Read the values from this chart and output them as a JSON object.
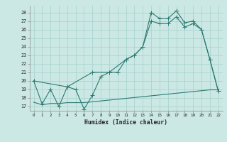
{
  "xlabel": "Humidex (Indice chaleur)",
  "bg_color": "#cce8e4",
  "grid_color": "#aad4d0",
  "line_color": "#2d7a72",
  "line1_x": [
    0,
    1,
    2,
    3,
    4,
    5,
    6,
    7,
    8,
    9,
    10,
    11,
    12,
    13,
    14,
    15,
    16,
    17,
    18,
    19,
    20,
    21,
    22
  ],
  "line1_y": [
    20.0,
    17.3,
    19.0,
    17.0,
    19.3,
    19.0,
    16.7,
    18.3,
    20.5,
    21.0,
    21.0,
    22.5,
    23.0,
    24.0,
    28.0,
    27.3,
    27.3,
    28.2,
    26.8,
    27.0,
    26.0,
    22.5,
    18.8
  ],
  "line2_x": [
    0,
    4,
    7,
    9,
    11,
    12,
    13,
    14,
    15,
    16,
    17,
    18,
    19,
    20,
    21,
    22
  ],
  "line2_y": [
    20.0,
    19.3,
    21.0,
    21.0,
    22.5,
    23.0,
    24.0,
    27.0,
    26.7,
    26.7,
    27.5,
    26.3,
    26.7,
    26.0,
    22.5,
    18.8
  ],
  "line3_x": [
    0,
    1,
    2,
    3,
    4,
    5,
    6,
    7,
    8,
    9,
    10,
    11,
    12,
    13,
    14,
    15,
    16,
    17,
    18,
    19,
    20,
    21,
    22
  ],
  "line3_y": [
    17.5,
    17.2,
    17.35,
    17.35,
    17.45,
    17.45,
    17.45,
    17.55,
    17.65,
    17.75,
    17.85,
    17.95,
    18.05,
    18.15,
    18.25,
    18.35,
    18.45,
    18.55,
    18.65,
    18.75,
    18.85,
    18.95,
    18.95
  ],
  "ylim": [
    16.5,
    28.8
  ],
  "xlim": [
    -0.5,
    22.5
  ],
  "yticks": [
    17,
    18,
    19,
    20,
    21,
    22,
    23,
    24,
    25,
    26,
    27,
    28
  ],
  "xticks": [
    0,
    1,
    2,
    3,
    4,
    5,
    6,
    7,
    8,
    9,
    10,
    11,
    12,
    13,
    14,
    15,
    16,
    17,
    18,
    19,
    20,
    21,
    22
  ]
}
